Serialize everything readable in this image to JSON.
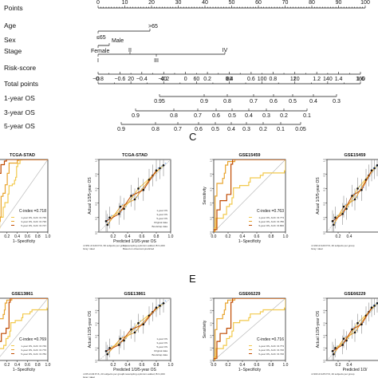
{
  "nomogram": {
    "rows": [
      {
        "label": "Points",
        "ticks": [
          "0",
          "10",
          "20",
          "30",
          "40",
          "50",
          "60",
          "70",
          "80",
          "90",
          "100"
        ]
      },
      {
        "label": "Age",
        "ticks": [
          "≤65",
          ">65"
        ]
      },
      {
        "label": "Sex",
        "ticks": [
          "Male",
          "Female"
        ]
      },
      {
        "label": "Stage",
        "ticks": [
          "I",
          "II",
          "III",
          "IV"
        ]
      },
      {
        "label": "Risk-score",
        "ticks": [
          "−0.8",
          "−0.6",
          "−0.4",
          "−0.2",
          "0",
          "0.2",
          "0.4",
          "0.6",
          "0.8",
          "1",
          "1.2",
          "1.4",
          "1.6"
        ]
      },
      {
        "label": "Total points",
        "ticks": [
          "0",
          "20",
          "40",
          "60",
          "80",
          "100",
          "120",
          "140",
          "160"
        ]
      },
      {
        "label": "1-year OS",
        "ticks": [
          "0.95",
          "0.9",
          "0.8",
          "0.7",
          "0.6",
          "0.5",
          "0.4",
          "0.3"
        ]
      },
      {
        "label": "3-year OS",
        "ticks": [
          "0.9",
          "0.8",
          "0.7",
          "0.6",
          "0.5",
          "0.4",
          "0.3",
          "0.2",
          "0.1"
        ]
      },
      {
        "label": "5-year OS",
        "ticks": [
          "0.9",
          "0.8",
          "0.7",
          "0.6",
          "0.5",
          "0.4",
          "0.3",
          "0.2",
          "0.1",
          "0.05"
        ]
      }
    ]
  },
  "chart_data": [
    {
      "type": "line",
      "panel": "roc-tcga",
      "title": "TCGA-STAD",
      "xlabel": "1−Specificity",
      "ylabel": "",
      "x_ticks": [
        "0.2",
        "0.4",
        "0.6",
        "0.8",
        "1.0"
      ],
      "cindex": "C-index =0.718",
      "legend": [
        "1-year OS, AUC =0.739",
        "3-year OS, AUC =0.736",
        "5-year OS, AUC =0.747"
      ]
    },
    {
      "type": "line",
      "panel": "cal-tcga",
      "title": "TCGA-STAD",
      "xlabel": "Predicted 1/3/5-year OS",
      "ylabel": "Actual 1/3/5-year OS",
      "x_ticks": [
        "0.2",
        "0.4",
        "0.6",
        "0.8",
        "1.0"
      ],
      "y_ticks": [
        "0.0",
        "0.2",
        "0.4",
        "0.6",
        "0.8",
        "1.0"
      ],
      "legend": [
        "1-year OS",
        "3-year OS",
        "5-year OS",
        "Original data",
        "Bootstrap data"
      ],
      "footnote": [
        "n=351 d=120 P=6, 60 subjects per group",
        "Gray: ideal",
        "X-resampling optimism added, B=1,000",
        "Based on observed-predicted"
      ]
    },
    {
      "type": "line",
      "panel": "roc-gse15459",
      "title": "GSE15459",
      "xlabel": "1−Specificity",
      "ylabel": "Sensitivity",
      "x_ticks": [
        "0.0",
        "0.2",
        "0.4",
        "0.6",
        "0.8",
        "1.0"
      ],
      "y_ticks": [
        "0.0",
        "0.2",
        "0.4",
        "0.6",
        "0.8",
        "1.0"
      ],
      "cindex": "C-index =0.763",
      "legend": [
        "1-year OS, AUC =0.773",
        "3-year OS, AUC =0.786",
        "5-year OS, AUC =0.800"
      ]
    },
    {
      "type": "line",
      "panel": "cal-gse15459",
      "title": "GSE15459",
      "xlabel": "",
      "ylabel": "Actual 1/3/5-year OS",
      "x_ticks": [
        "0.2",
        "0.4"
      ],
      "y_ticks": [
        "0.0",
        "0.2",
        "0.4",
        "0.6",
        "0.8",
        "1.0"
      ],
      "footnote": [
        "n=190 d=120 P=6, 40 subjects per group",
        "Gray: ideal"
      ]
    },
    {
      "type": "line",
      "panel": "roc-gse13861",
      "title": "GSE13861",
      "xlabel": "1−Specificity",
      "ylabel": "",
      "x_ticks": [
        "0.2",
        "0.4",
        "0.6",
        "0.8",
        "1.0"
      ],
      "cindex": "C-index =0.769",
      "legend": [
        "1-year OS, AUC =0.749",
        "3-year OS, AUC =0.776",
        "5-year OS, AUC =0.784"
      ]
    },
    {
      "type": "line",
      "panel": "cal-gse13861",
      "title": "GSE13861",
      "xlabel": "Predicted 1/3/5-year OS",
      "ylabel": "Actual 1/3/5-year OS",
      "x_ticks": [
        "0.2",
        "0.4",
        "0.6",
        "0.8",
        "1.0"
      ],
      "y_ticks": [
        "0.0",
        "0.2",
        "0.4",
        "0.6",
        "0.8",
        "1.0"
      ],
      "legend": [
        "1-year OS",
        "3-year OS",
        "5-year OS",
        "Original data",
        "Bootstrap data"
      ],
      "footnote": [
        "n=65 d=29 P=6, 20 subjects per group",
        "Gray: ideal",
        "X-resampling optimism added, B=1,000"
      ]
    },
    {
      "type": "line",
      "panel": "roc-gse66229",
      "title": "GSE66229",
      "xlabel": "1−Specificity",
      "ylabel": "Sensitivity",
      "x_ticks": [
        "0.0",
        "0.2",
        "0.4",
        "0.6",
        "0.8",
        "1.0"
      ],
      "y_ticks": [
        "0.0",
        "0.2",
        "0.4",
        "0.6",
        "0.8",
        "1.0"
      ],
      "cindex": "C-index =0.716",
      "legend": [
        "1-year OS, AUC =0.773",
        "3-year OS, AUC =0.720",
        "5-year OS, AUC =0.720"
      ]
    },
    {
      "type": "line",
      "panel": "cal-gse66229",
      "title": "GSE66229",
      "xlabel": "Predicted 1/3/",
      "ylabel": "Actual 1/3/5-year OS",
      "x_ticks": [
        "0.2",
        "0.4"
      ],
      "y_ticks": [
        "0.0",
        "0.2",
        "0.4",
        "0.6",
        "0.8",
        "1.0"
      ],
      "footnote": [
        "n=300 d=125 P=6, 40 subjects per group"
      ]
    }
  ],
  "panel_letters": [
    "C",
    "E"
  ],
  "colors": {
    "one_year": "#f2c94c",
    "three_year": "#e8a32c",
    "five_year": "#c04a00",
    "ideal": "#bbbbbb",
    "axis": "#111111",
    "bootstrap": "#1a73e8",
    "original": "#111111"
  }
}
